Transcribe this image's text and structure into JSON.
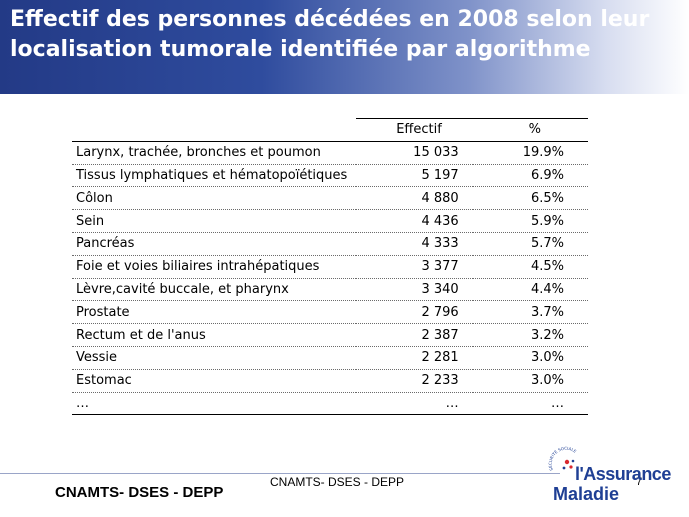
{
  "header": {
    "title": "Effectif des personnes décédées en 2008 selon leur localisation tumorale identifiée par algorithme"
  },
  "table": {
    "columns": [
      "",
      "Effectif",
      "%"
    ],
    "rows": [
      {
        "label": "Larynx, trachée, bronches et poumon",
        "effectif": "15 033",
        "pct": "19.9%"
      },
      {
        "label": "Tissus lymphatiques et hématopoïétiques",
        "effectif": "5 197",
        "pct": "6.9%"
      },
      {
        "label": "Côlon",
        "effectif": "4 880",
        "pct": "6.5%"
      },
      {
        "label": "Sein",
        "effectif": "4 436",
        "pct": "5.9%"
      },
      {
        "label": "Pancréas",
        "effectif": "4 333",
        "pct": "5.7%"
      },
      {
        "label": "Foie et voies biliaires intrahépatiques",
        "effectif": "3 377",
        "pct": "4.5%"
      },
      {
        "label": "Lèvre,cavité buccale, et pharynx",
        "effectif": "3 340",
        "pct": "4.4%"
      },
      {
        "label": "Prostate",
        "effectif": "2 796",
        "pct": "3.7%"
      },
      {
        "label": "Rectum et de l'anus",
        "effectif": "2 387",
        "pct": "3.2%"
      },
      {
        "label": "Vessie",
        "effectif": "2 281",
        "pct": "3.0%"
      },
      {
        "label": "Estomac",
        "effectif": "2 233",
        "pct": "3.0%"
      },
      {
        "label": "…",
        "effectif": "…",
        "pct": "…"
      }
    ]
  },
  "footer": {
    "left": "CNAMTS- DSES - DEPP",
    "center": "CNAMTS- DSES - DEPP",
    "page_number": "7",
    "logo_line1": "l'Assurance",
    "logo_line2": "Maladie",
    "logo_arc": "SÉCURITÉ SOCIALE"
  },
  "colors": {
    "header_blue": "#233a86",
    "logo_blue": "#1f3f94"
  }
}
